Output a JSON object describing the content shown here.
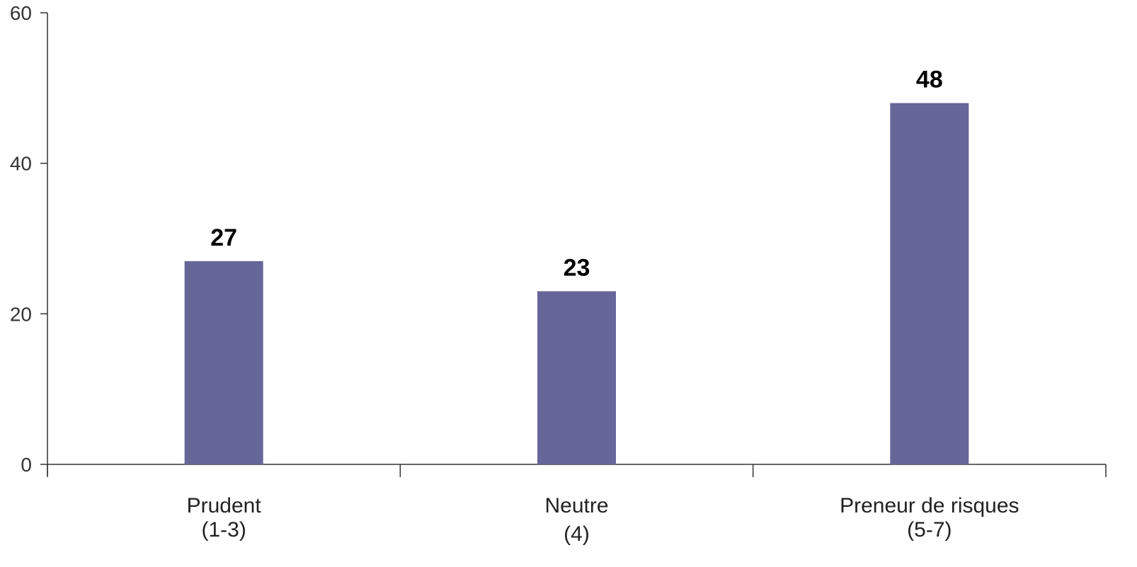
{
  "chart_data": {
    "type": "bar",
    "categories": [
      [
        "Prudent",
        "(1-3)"
      ],
      [
        "Neutre",
        "(4)"
      ],
      [
        "Preneur de risques",
        "(5-7)"
      ]
    ],
    "values": [
      27,
      23,
      48
    ],
    "value_labels": [
      "27",
      "23",
      "48"
    ],
    "yticks": [
      0,
      20,
      40,
      60
    ],
    "ytick_labels": [
      "0",
      "20",
      "40",
      "60"
    ],
    "ylim": [
      0,
      60
    ],
    "title": "",
    "xlabel": "",
    "ylabel": "",
    "bar_color": "#666699",
    "grid": false,
    "legend": "none"
  }
}
